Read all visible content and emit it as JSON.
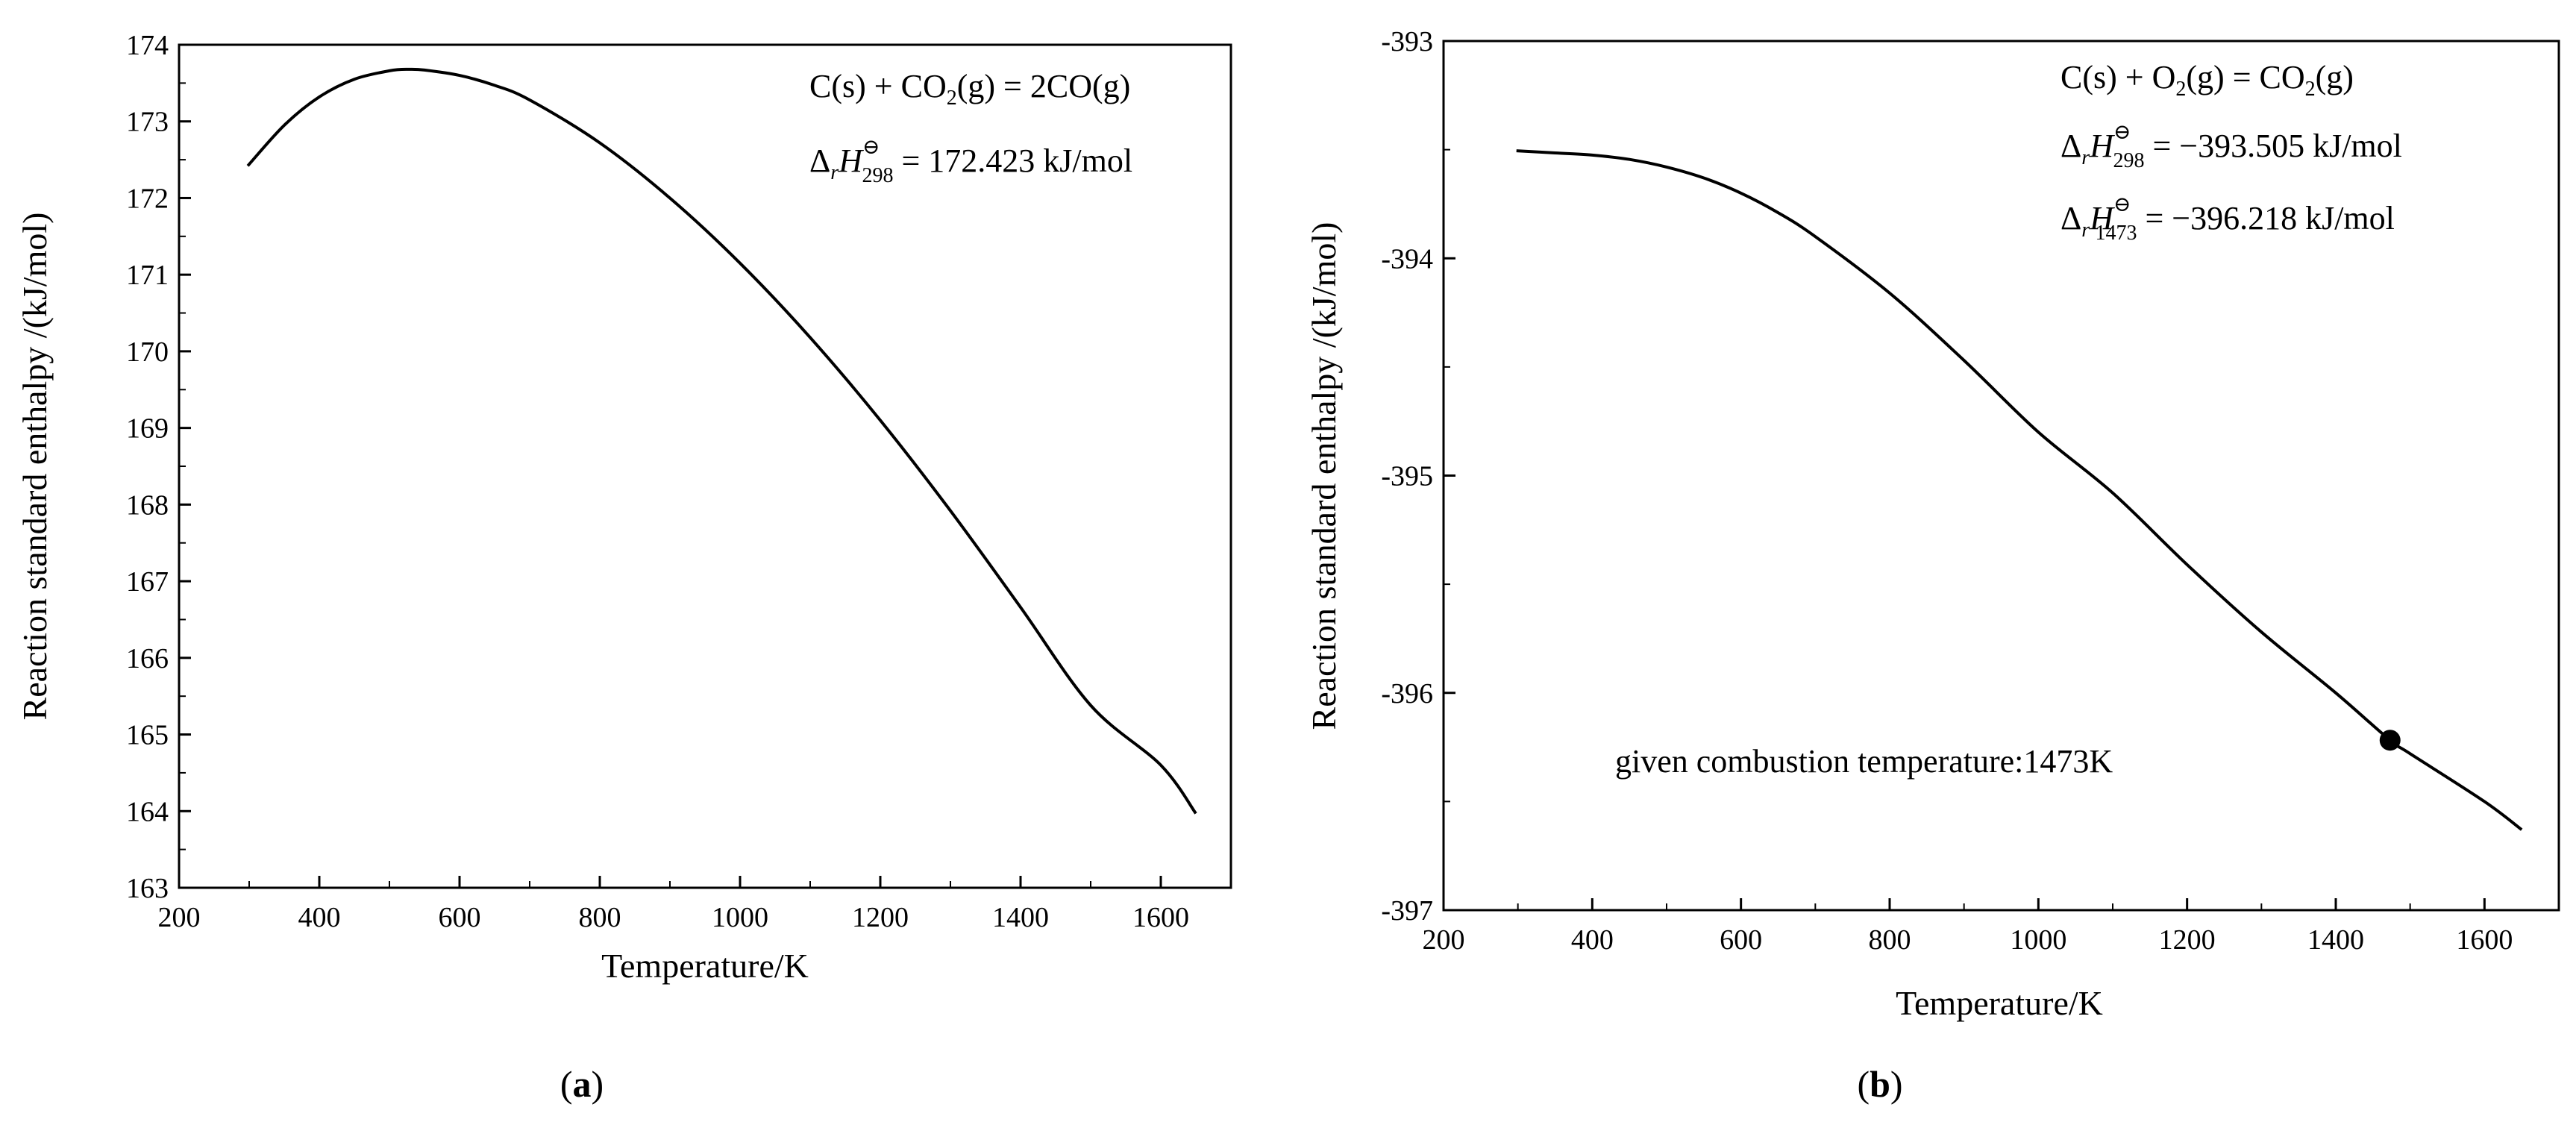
{
  "chart_data": [
    {
      "type": "line",
      "id": "a",
      "panel_label_open": "(",
      "panel_label_letter": "a",
      "panel_label_close": ")",
      "xlabel": "Temperature/K",
      "ylabel": "Reaction standard enthalpy /(kJ/mol)",
      "xlim": [
        200,
        1700
      ],
      "ylim": [
        163,
        174
      ],
      "x_ticks": [
        200,
        400,
        600,
        800,
        1000,
        1200,
        1400,
        1600
      ],
      "y_ticks": [
        163,
        164,
        165,
        166,
        167,
        168,
        169,
        170,
        171,
        172,
        173,
        174
      ],
      "series": [
        {
          "name": "C(s)+CO2(g)=2CO(g)",
          "x": [
            298,
            350,
            400,
            450,
            500,
            527,
            550,
            600,
            650,
            700,
            800,
            900,
            1000,
            1100,
            1200,
            1300,
            1400,
            1500,
            1600,
            1650
          ],
          "y": [
            172.42,
            172.95,
            173.32,
            173.55,
            173.66,
            173.68,
            173.67,
            173.6,
            173.47,
            173.28,
            172.72,
            172.0,
            171.15,
            170.18,
            169.1,
            167.92,
            166.66,
            165.38,
            164.6,
            163.97
          ]
        }
      ],
      "annotations": {
        "reaction": {
          "a": "C(s)",
          "op1": " + ",
          "b": "CO",
          "b_sub": "2",
          "c": "(g) = 2CO(g)"
        },
        "enthalpy": [
          {
            "delta": "Δ",
            "r": "r",
            "H": "H",
            "sup": "⊖",
            "sub": "298",
            "rest": " = 172.423 kJ/mol"
          }
        ]
      }
    },
    {
      "type": "line",
      "id": "b",
      "panel_label_open": "(",
      "panel_label_letter": "b",
      "panel_label_close": ")",
      "xlabel": "Temperature/K",
      "ylabel": "Reaction standard enthalpy /(kJ/mol)",
      "xlim": [
        200,
        1700
      ],
      "ylim": [
        -397,
        -393
      ],
      "x_ticks": [
        200,
        400,
        600,
        800,
        1000,
        1200,
        1400,
        1600
      ],
      "y_ticks": [
        -397,
        -396,
        -395,
        -394,
        -393
      ],
      "series": [
        {
          "name": "C(s)+O2(g)=CO2(g)",
          "x": [
            298,
            350,
            400,
            450,
            500,
            550,
            600,
            650,
            700,
            800,
            900,
            1000,
            1100,
            1200,
            1300,
            1400,
            1473,
            1500,
            1600,
            1650
          ],
          "y": [
            -393.505,
            -393.515,
            -393.525,
            -393.545,
            -393.58,
            -393.63,
            -393.7,
            -393.79,
            -393.9,
            -394.16,
            -394.47,
            -394.8,
            -395.08,
            -395.41,
            -395.72,
            -396.0,
            -396.218,
            -396.28,
            -396.5,
            -396.63
          ]
        }
      ],
      "marker": {
        "x": 1473,
        "y": -396.218
      },
      "annotations": {
        "reaction": {
          "a": "C(s)",
          "op1": " + ",
          "b": "O",
          "b_sub": "2",
          "c": "(g) = CO",
          "c_sub": "2",
          "d": "(g)"
        },
        "enthalpy": [
          {
            "delta": "Δ",
            "r": "r",
            "H": "H",
            "sup": "⊖",
            "sub": "298",
            "rest": " = −393.505 kJ/mol"
          },
          {
            "delta": "Δ",
            "r": "r",
            "H": "H",
            "sup": "⊖",
            "sub": "1473",
            "rest": " = −396.218 kJ/mol"
          }
        ],
        "note": "given combustion temperature:1473K"
      }
    }
  ]
}
